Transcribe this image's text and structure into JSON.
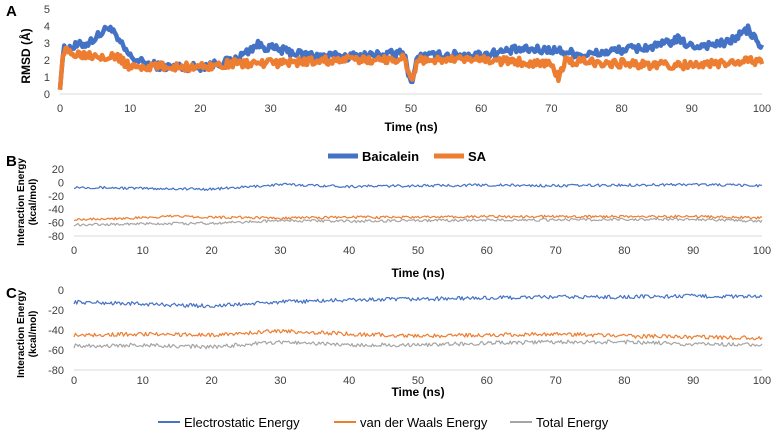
{
  "chart_data": [
    {
      "panel": "A",
      "type": "line",
      "xlabel": "Time (ns)",
      "ylabel": "RMSD (Å)",
      "xlim": [
        0,
        100
      ],
      "ylim": [
        0,
        5
      ],
      "xticks": [
        0,
        10,
        20,
        30,
        40,
        50,
        60,
        70,
        80,
        90,
        100
      ],
      "yticks": [
        0,
        1,
        2,
        3,
        4,
        5
      ],
      "series": [
        {
          "name": "Baicalein",
          "color": "#4472C4",
          "x": [
            0,
            0.5,
            2,
            4,
            6,
            7,
            8,
            10,
            12,
            15,
            20,
            25,
            28,
            30,
            35,
            40,
            45,
            49,
            50,
            51,
            55,
            60,
            65,
            70,
            75,
            80,
            85,
            88,
            90,
            95,
            98,
            100
          ],
          "y": [
            0.5,
            2.6,
            2.8,
            3.0,
            3.6,
            4.0,
            3.3,
            2.2,
            1.8,
            1.6,
            1.6,
            2.0,
            2.9,
            2.7,
            2.3,
            2.2,
            2.3,
            2.4,
            0.6,
            2.2,
            2.3,
            2.3,
            2.6,
            2.6,
            2.3,
            2.6,
            2.8,
            3.2,
            2.8,
            3.0,
            3.8,
            2.7
          ]
        },
        {
          "name": "SA",
          "color": "#ED7D31",
          "x": [
            0,
            0.5,
            2,
            5,
            8,
            10,
            12,
            15,
            20,
            25,
            30,
            35,
            40,
            45,
            49,
            50,
            51,
            55,
            60,
            65,
            70,
            71,
            72,
            75,
            80,
            85,
            90,
            95,
            100
          ],
          "y": [
            0.5,
            2.5,
            2.4,
            2.3,
            2.2,
            1.6,
            1.6,
            1.6,
            1.6,
            1.8,
            1.8,
            1.9,
            2.0,
            2.0,
            2.1,
            0.8,
            2.0,
            2.0,
            2.0,
            1.9,
            1.8,
            0.9,
            1.9,
            1.9,
            1.8,
            1.7,
            1.7,
            1.8,
            2.0
          ]
        }
      ],
      "legend": {
        "position": "bottom",
        "entries": [
          "Baicalein",
          "SA"
        ]
      }
    },
    {
      "panel": "B",
      "type": "line",
      "xlabel": "Time (ns)",
      "ylabel": "Interaction Energy (kcal/mol)",
      "ylabel_lines": [
        "Interaction Energy",
        "(kcal/mol)"
      ],
      "xlim": [
        0,
        100
      ],
      "ylim": [
        -80,
        20
      ],
      "xticks": [
        0,
        10,
        20,
        30,
        40,
        50,
        60,
        70,
        80,
        90,
        100
      ],
      "yticks": [
        -80,
        -60,
        -40,
        -20,
        0,
        20
      ],
      "series": [
        {
          "name": "Electrostatic Energy",
          "color": "#4472C4",
          "x": [
            0,
            10,
            20,
            25,
            30,
            40,
            50,
            60,
            70,
            80,
            90,
            100
          ],
          "y": [
            -7,
            -9,
            -10,
            -7,
            -3,
            -6,
            -5,
            -4,
            -5,
            -4,
            -3,
            -5
          ]
        },
        {
          "name": "van der Waals Energy",
          "color": "#ED7D31",
          "x": [
            0,
            10,
            15,
            20,
            30,
            40,
            50,
            60,
            70,
            80,
            90,
            100
          ],
          "y": [
            -55,
            -53,
            -50,
            -52,
            -53,
            -52,
            -52,
            -51,
            -51,
            -51,
            -51,
            -53
          ]
        },
        {
          "name": "Total Energy",
          "color": "#A5A5A5",
          "x": [
            0,
            10,
            20,
            30,
            40,
            50,
            60,
            70,
            80,
            90,
            100
          ],
          "y": [
            -63,
            -62,
            -61,
            -57,
            -58,
            -57,
            -56,
            -56,
            -55,
            -55,
            -58
          ]
        }
      ]
    },
    {
      "panel": "C",
      "type": "line",
      "xlabel": "Time (ns)",
      "ylabel": "Interaction Energy (kcal/mol)",
      "ylabel_lines": [
        "Interaction Energy",
        "(kcal/mol)"
      ],
      "xlim": [
        0,
        100
      ],
      "ylim": [
        -80,
        0
      ],
      "xticks": [
        0,
        10,
        20,
        30,
        40,
        50,
        60,
        70,
        80,
        90,
        100
      ],
      "yticks": [
        -80,
        -60,
        -40,
        -20,
        0
      ],
      "series": [
        {
          "name": "Electrostatic Energy",
          "color": "#4472C4",
          "x": [
            0,
            10,
            20,
            30,
            40,
            50,
            60,
            70,
            80,
            90,
            100
          ],
          "y": [
            -12,
            -14,
            -16,
            -12,
            -10,
            -9,
            -8,
            -7,
            -7,
            -6,
            -7
          ]
        },
        {
          "name": "van der Waals Energy",
          "color": "#ED7D31",
          "x": [
            0,
            10,
            20,
            30,
            40,
            50,
            60,
            70,
            80,
            90,
            100
          ],
          "y": [
            -45,
            -44,
            -45,
            -41,
            -44,
            -46,
            -45,
            -44,
            -46,
            -47,
            -48
          ]
        },
        {
          "name": "Total Energy",
          "color": "#A5A5A5",
          "x": [
            0,
            10,
            20,
            30,
            40,
            50,
            60,
            70,
            80,
            90,
            100
          ],
          "y": [
            -56,
            -55,
            -57,
            -52,
            -55,
            -55,
            -53,
            -52,
            -52,
            -54,
            -55
          ]
        }
      ],
      "legend": {
        "position": "bottom",
        "entries": [
          "Electrostatic Energy",
          "van der Waals Energy",
          "Total Energy"
        ]
      }
    }
  ]
}
